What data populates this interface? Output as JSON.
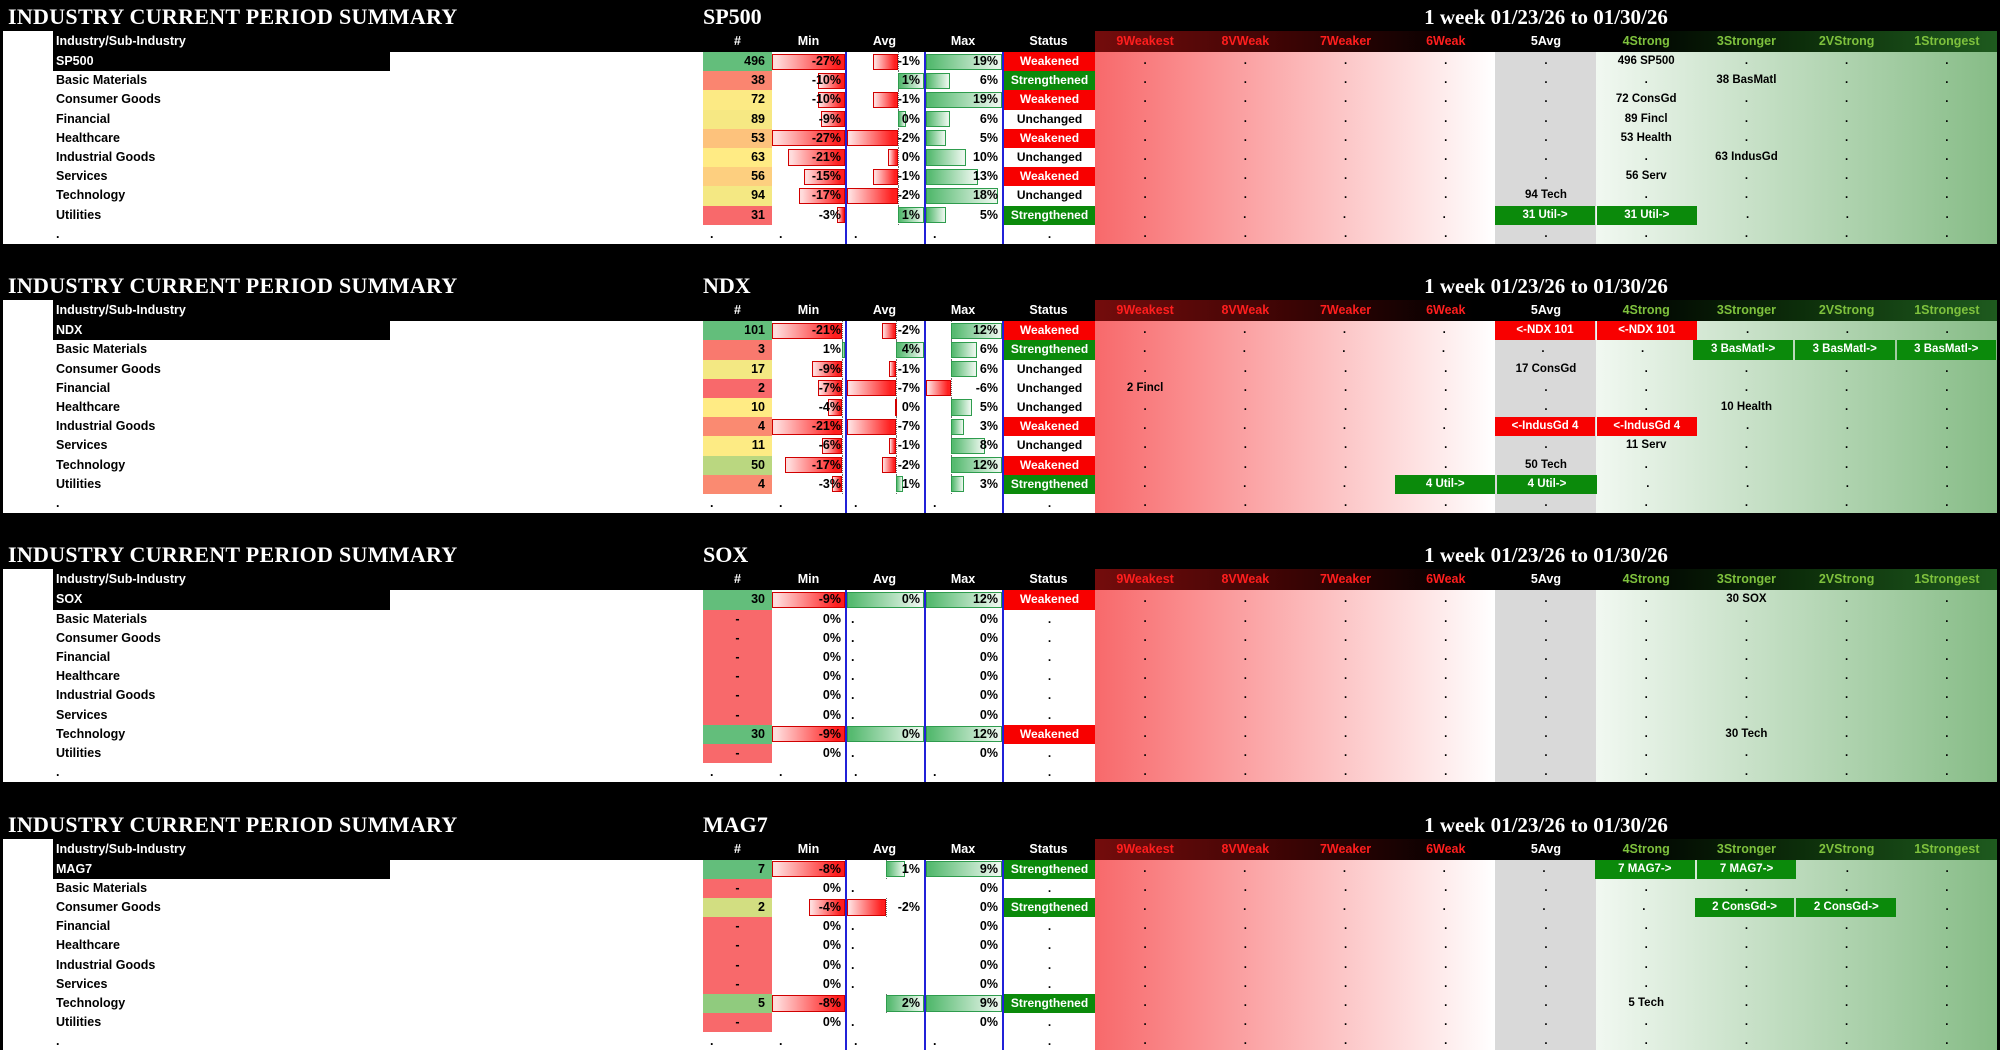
{
  "report": {
    "title": "INDUSTRY CURRENT PERIOD SUMMARY",
    "period": "1 week 01/23/26 to 01/30/26",
    "label_header": "Industry/Sub-Industry",
    "columns": [
      "#",
      "Min",
      "Avg",
      "Max",
      "Status"
    ],
    "spectrum_headers": [
      "9Weakest",
      "8VWeak",
      "7Weaker",
      "6Weak",
      "5Avg",
      "4Strong",
      "3Stronger",
      "2VStrong",
      "1Strongest"
    ],
    "sections": [
      {
        "index": "SP500",
        "rows": [
          {
            "label": "SP500",
            "is_index": true,
            "count": "496",
            "min": "-27%",
            "avg": "-1%",
            "max": "19%",
            "status": "Weakened",
            "min_v": -27,
            "avg_v": -1,
            "max_v": 19,
            "spectrum": [
              {
                "col": 5,
                "text": "496 SP500",
                "hl": null
              }
            ]
          },
          {
            "label": "Basic Materials",
            "is_index": false,
            "count": "38",
            "min": "-10%",
            "avg": "1%",
            "max": "6%",
            "status": "Strengthened",
            "min_v": -10,
            "avg_v": 1,
            "max_v": 6,
            "spectrum": [
              {
                "col": 6,
                "text": "38 BasMatl",
                "hl": null
              }
            ]
          },
          {
            "label": "Consumer Goods",
            "is_index": false,
            "count": "72",
            "min": "-10%",
            "avg": "-1%",
            "max": "19%",
            "status": "Weakened",
            "min_v": -10,
            "avg_v": -1,
            "max_v": 19,
            "spectrum": [
              {
                "col": 5,
                "text": "72 ConsGd",
                "hl": null
              }
            ]
          },
          {
            "label": "Financial",
            "is_index": false,
            "count": "89",
            "min": "-9%",
            "avg": "0%",
            "max": "6%",
            "status": "Unchanged",
            "min_v": -9,
            "avg_v": 0.3,
            "max_v": 6,
            "spectrum": [
              {
                "col": 5,
                "text": "89 Fincl",
                "hl": null
              }
            ]
          },
          {
            "label": "Healthcare",
            "is_index": false,
            "count": "53",
            "min": "-27%",
            "avg": "-2%",
            "max": "5%",
            "status": "Weakened",
            "min_v": -27,
            "avg_v": -2,
            "max_v": 5,
            "spectrum": [
              {
                "col": 5,
                "text": "53 Health",
                "hl": null
              }
            ]
          },
          {
            "label": "Industrial Goods",
            "is_index": false,
            "count": "63",
            "min": "-21%",
            "avg": "0%",
            "max": "10%",
            "status": "Unchanged",
            "min_v": -21,
            "avg_v": -0.4,
            "max_v": 10,
            "spectrum": [
              {
                "col": 6,
                "text": "63 IndusGd",
                "hl": null
              }
            ]
          },
          {
            "label": "Services",
            "is_index": false,
            "count": "56",
            "min": "-15%",
            "avg": "-1%",
            "max": "13%",
            "status": "Weakened",
            "min_v": -15,
            "avg_v": -1,
            "max_v": 13,
            "spectrum": [
              {
                "col": 5,
                "text": "56 Serv",
                "hl": null
              }
            ]
          },
          {
            "label": "Technology",
            "is_index": false,
            "count": "94",
            "min": "-17%",
            "avg": "-2%",
            "max": "18%",
            "status": "Unchanged",
            "min_v": -17,
            "avg_v": -2,
            "max_v": 18,
            "spectrum": [
              {
                "col": 4,
                "text": "94 Tech",
                "hl": null
              }
            ]
          },
          {
            "label": "Utilities",
            "is_index": false,
            "count": "31",
            "min": "-3%",
            "avg": "1%",
            "max": "5%",
            "status": "Strengthened",
            "min_v": -3,
            "avg_v": 1,
            "max_v": 5,
            "spectrum": [
              {
                "col": 4,
                "text": "31 Util->",
                "hl": "green"
              },
              {
                "col": 5,
                "text": "31 Util->",
                "hl": "green"
              }
            ]
          }
        ]
      },
      {
        "index": "NDX",
        "rows": [
          {
            "label": "NDX",
            "is_index": true,
            "count": "101",
            "min": "-21%",
            "avg": "-2%",
            "max": "12%",
            "status": "Weakened",
            "min_v": -21,
            "avg_v": -2,
            "max_v": 12,
            "spectrum": [
              {
                "col": 4,
                "text": "<-NDX 101",
                "hl": "red"
              },
              {
                "col": 5,
                "text": "<-NDX 101",
                "hl": "red"
              }
            ]
          },
          {
            "label": "Basic Materials",
            "is_index": false,
            "count": "3",
            "min": "1%",
            "avg": "4%",
            "max": "6%",
            "status": "Strengthened",
            "min_v": 1,
            "avg_v": 4,
            "max_v": 6,
            "spectrum": [
              {
                "col": 6,
                "text": "3 BasMatl->",
                "hl": "green"
              },
              {
                "col": 7,
                "text": "3 BasMatl->",
                "hl": "green"
              },
              {
                "col": 8,
                "text": "3 BasMatl->",
                "hl": "green"
              }
            ]
          },
          {
            "label": "Consumer Goods",
            "is_index": false,
            "count": "17",
            "min": "-9%",
            "avg": "-1%",
            "max": "6%",
            "status": "Unchanged",
            "min_v": -9,
            "avg_v": -1,
            "max_v": 6,
            "spectrum": [
              {
                "col": 4,
                "text": "17 ConsGd",
                "hl": null
              }
            ]
          },
          {
            "label": "Financial",
            "is_index": false,
            "count": "2",
            "min": "-7%",
            "avg": "-7%",
            "max": "-6%",
            "status": "Unchanged",
            "min_v": -7,
            "avg_v": -7,
            "max_v": -6,
            "spectrum": [
              {
                "col": 0,
                "text": "2 Fincl",
                "hl": null
              }
            ]
          },
          {
            "label": "Healthcare",
            "is_index": false,
            "count": "10",
            "min": "-4%",
            "avg": "0%",
            "max": "5%",
            "status": "Unchanged",
            "min_v": -4,
            "avg_v": -0.2,
            "max_v": 5,
            "spectrum": [
              {
                "col": 6,
                "text": "10 Health",
                "hl": null
              }
            ]
          },
          {
            "label": "Industrial Goods",
            "is_index": false,
            "count": "4",
            "min": "-21%",
            "avg": "-7%",
            "max": "3%",
            "status": "Weakened",
            "min_v": -21,
            "avg_v": -7,
            "max_v": 3,
            "spectrum": [
              {
                "col": 4,
                "text": "<-IndusGd 4",
                "hl": "red"
              },
              {
                "col": 5,
                "text": "<-IndusGd 4",
                "hl": "red"
              }
            ]
          },
          {
            "label": "Services",
            "is_index": false,
            "count": "11",
            "min": "-6%",
            "avg": "-1%",
            "max": "8%",
            "status": "Unchanged",
            "min_v": -6,
            "avg_v": -1,
            "max_v": 8,
            "spectrum": [
              {
                "col": 5,
                "text": "11 Serv",
                "hl": null
              }
            ]
          },
          {
            "label": "Technology",
            "is_index": false,
            "count": "50",
            "min": "-17%",
            "avg": "-2%",
            "max": "12%",
            "status": "Weakened",
            "min_v": -17,
            "avg_v": -2,
            "max_v": 12,
            "spectrum": [
              {
                "col": 4,
                "text": "50 Tech",
                "hl": null
              }
            ]
          },
          {
            "label": "Utilities",
            "is_index": false,
            "count": "4",
            "min": "-3%",
            "avg": "1%",
            "max": "3%",
            "status": "Strengthened",
            "min_v": -3,
            "avg_v": 1,
            "max_v": 3,
            "spectrum": [
              {
                "col": 3,
                "text": "4 Util->",
                "hl": "green"
              },
              {
                "col": 4,
                "text": "4 Util->",
                "hl": "green"
              }
            ]
          }
        ]
      },
      {
        "index": "SOX",
        "rows": [
          {
            "label": "SOX",
            "is_index": true,
            "count": "30",
            "min": "-9%",
            "avg": "0%",
            "max": "12%",
            "status": "Weakened",
            "min_v": -9,
            "avg_v": 0,
            "max_v": 12,
            "spectrum": [
              {
                "col": 6,
                "text": "30 SOX",
                "hl": null
              }
            ]
          },
          {
            "label": "Basic Materials",
            "is_index": false,
            "count": "-",
            "min": "0%",
            "avg": ".",
            "max": "0%",
            "status": ".",
            "min_v": 0,
            "avg_v": null,
            "max_v": 0,
            "spectrum": []
          },
          {
            "label": "Consumer Goods",
            "is_index": false,
            "count": "-",
            "min": "0%",
            "avg": ".",
            "max": "0%",
            "status": ".",
            "min_v": 0,
            "avg_v": null,
            "max_v": 0,
            "spectrum": []
          },
          {
            "label": "Financial",
            "is_index": false,
            "count": "-",
            "min": "0%",
            "avg": ".",
            "max": "0%",
            "status": ".",
            "min_v": 0,
            "avg_v": null,
            "max_v": 0,
            "spectrum": []
          },
          {
            "label": "Healthcare",
            "is_index": false,
            "count": "-",
            "min": "0%",
            "avg": ".",
            "max": "0%",
            "status": ".",
            "min_v": 0,
            "avg_v": null,
            "max_v": 0,
            "spectrum": []
          },
          {
            "label": "Industrial Goods",
            "is_index": false,
            "count": "-",
            "min": "0%",
            "avg": ".",
            "max": "0%",
            "status": ".",
            "min_v": 0,
            "avg_v": null,
            "max_v": 0,
            "spectrum": []
          },
          {
            "label": "Services",
            "is_index": false,
            "count": "-",
            "min": "0%",
            "avg": ".",
            "max": "0%",
            "status": ".",
            "min_v": 0,
            "avg_v": null,
            "max_v": 0,
            "spectrum": []
          },
          {
            "label": "Technology",
            "is_index": false,
            "count": "30",
            "min": "-9%",
            "avg": "0%",
            "max": "12%",
            "status": "Weakened",
            "min_v": -9,
            "avg_v": 0,
            "max_v": 12,
            "spectrum": [
              {
                "col": 6,
                "text": "30 Tech",
                "hl": null
              }
            ]
          },
          {
            "label": "Utilities",
            "is_index": false,
            "count": "-",
            "min": "0%",
            "avg": ".",
            "max": "0%",
            "status": ".",
            "min_v": 0,
            "avg_v": null,
            "max_v": 0,
            "spectrum": []
          }
        ]
      },
      {
        "index": "MAG7",
        "rows": [
          {
            "label": "MAG7",
            "is_index": true,
            "count": "7",
            "min": "-8%",
            "avg": "1%",
            "max": "9%",
            "status": "Strengthened",
            "min_v": -8,
            "avg_v": 1,
            "max_v": 9,
            "spectrum": [
              {
                "col": 5,
                "text": "7 MAG7->",
                "hl": "green"
              },
              {
                "col": 6,
                "text": "7 MAG7->",
                "hl": "green"
              }
            ]
          },
          {
            "label": "Basic Materials",
            "is_index": false,
            "count": "-",
            "min": "0%",
            "avg": ".",
            "max": "0%",
            "status": ".",
            "min_v": 0,
            "avg_v": null,
            "max_v": 0,
            "spectrum": []
          },
          {
            "label": "Consumer Goods",
            "is_index": false,
            "count": "2",
            "min": "-4%",
            "avg": "-2%",
            "max": "0%",
            "status": "Strengthened",
            "min_v": -4,
            "avg_v": -2,
            "max_v": 0,
            "spectrum": [
              {
                "col": 6,
                "text": "2 ConsGd->",
                "hl": "green"
              },
              {
                "col": 7,
                "text": "2 ConsGd->",
                "hl": "green"
              }
            ]
          },
          {
            "label": "Financial",
            "is_index": false,
            "count": "-",
            "min": "0%",
            "avg": ".",
            "max": "0%",
            "status": ".",
            "min_v": 0,
            "avg_v": null,
            "max_v": 0,
            "spectrum": []
          },
          {
            "label": "Healthcare",
            "is_index": false,
            "count": "-",
            "min": "0%",
            "avg": ".",
            "max": "0%",
            "status": ".",
            "min_v": 0,
            "avg_v": null,
            "max_v": 0,
            "spectrum": []
          },
          {
            "label": "Industrial Goods",
            "is_index": false,
            "count": "-",
            "min": "0%",
            "avg": ".",
            "max": "0%",
            "status": ".",
            "min_v": 0,
            "avg_v": null,
            "max_v": 0,
            "spectrum": []
          },
          {
            "label": "Services",
            "is_index": false,
            "count": "-",
            "min": "0%",
            "avg": ".",
            "max": "0%",
            "status": ".",
            "min_v": 0,
            "avg_v": null,
            "max_v": 0,
            "spectrum": []
          },
          {
            "label": "Technology",
            "is_index": false,
            "count": "5",
            "min": "-8%",
            "avg": "2%",
            "max": "9%",
            "status": "Strengthened",
            "min_v": -8,
            "avg_v": 2,
            "max_v": 9,
            "spectrum": [
              {
                "col": 5,
                "text": "5 Tech",
                "hl": null
              }
            ]
          },
          {
            "label": "Utilities",
            "is_index": false,
            "count": "-",
            "min": "0%",
            "avg": ".",
            "max": "0%",
            "status": ".",
            "min_v": 0,
            "avg_v": null,
            "max_v": 0,
            "spectrum": []
          }
        ]
      }
    ]
  },
  "glyphs": {
    "dot": "."
  },
  "colors": {
    "status_red": "#F80000",
    "status_green": "#0B8A0B",
    "scale_red": "#F8696B",
    "scale_yellow": "#FFEB84",
    "scale_green": "#63BE7B",
    "bar_red": "#FF1F1F",
    "bar_red_edge": "#D00000",
    "bar_green": "#56BA70",
    "bar_green_edge": "#2E9C4D",
    "blue_divider": "#2121D8",
    "spectrum_red": "#F8696B",
    "spectrum_gray": "#D9D9D9",
    "spectrum_green": "#86BC86",
    "header_red_text": "#FF1E1E",
    "header_green_text": "#7EC13D"
  }
}
